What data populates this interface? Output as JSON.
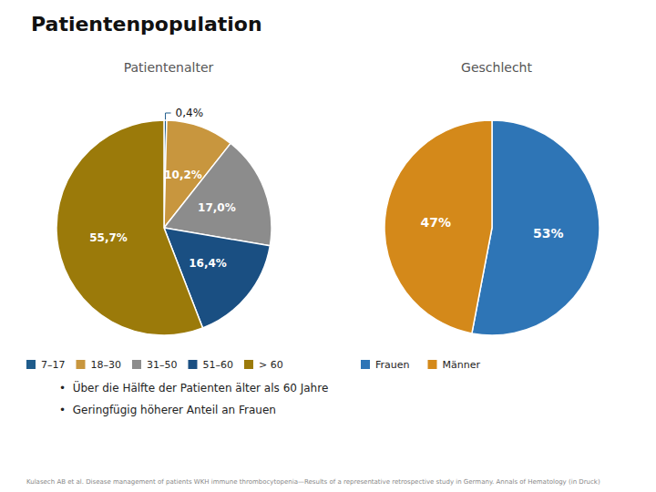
{
  "title": "Patientenpopulation",
  "annotations": [
    "•  Über die Hälfte der Patienten älter als 60 Jahre",
    "•  Geringfügig höherer Anteil an Frauen"
  ],
  "footnote": "Kulasech AB et al. Disease management of patients WKH immune thrombocytopenia—Results of a representative retrospective study in Germany. Annals of Hematology (in Druck)",
  "chart_data": [
    {
      "type": "pie",
      "title": "Patientenalter",
      "categories": [
        "7–17",
        "18–30",
        "31–50",
        "51–60",
        "> 60"
      ],
      "values": [
        0.4,
        10.2,
        17.0,
        16.4,
        55.7
      ],
      "value_labels": [
        "0,4%",
        "10,2%",
        "17,0%",
        "16,4%",
        "55,7%"
      ],
      "colors": [
        "#1F5C8B",
        "#C8963E",
        "#8C8C8C",
        "#1A4F82",
        "#9B7A0A"
      ],
      "data_labels": true,
      "legend": "bottom"
    },
    {
      "type": "pie",
      "title": "Geschlecht",
      "categories": [
        "Frauen",
        "Männer"
      ],
      "values": [
        53,
        47
      ],
      "value_labels": [
        "53%",
        "47%"
      ],
      "colors": [
        "#2E75B6",
        "#D4891A"
      ],
      "data_labels": true,
      "legend": "bottom"
    }
  ]
}
